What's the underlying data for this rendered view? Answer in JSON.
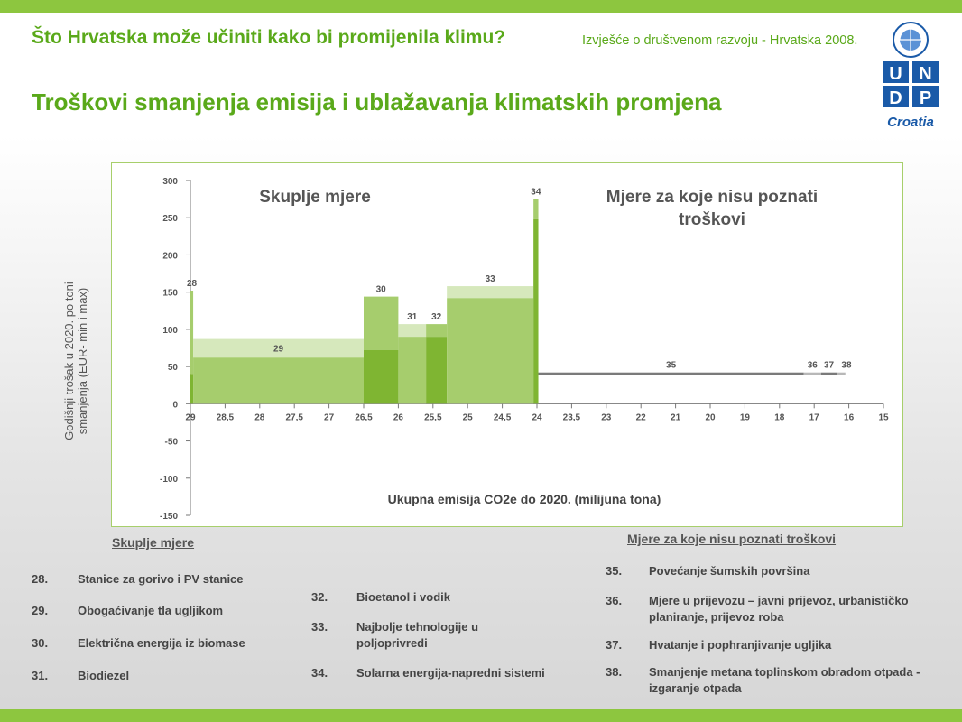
{
  "header": {
    "title": "Što Hrvatska može učiniti kako bi promijenila klimu?",
    "report": "Izvješće o društvenom razvoju - Hrvatska 2008.",
    "subtitle": "Troškovi smanjenja emisija i ublažavanja klimatskih promjena"
  },
  "logo": {
    "letters": [
      "U",
      "N",
      "D",
      "P"
    ],
    "country": "Croatia"
  },
  "colors": {
    "accent": "#8dc63f",
    "title_green": "#5aa91a",
    "bar_light": "#d6e8bc",
    "bar_mid": "#a6cd6d",
    "bar_dark": "#7fb532",
    "bar_gray": "#7a7a7a",
    "bar_gray_light": "#b8b8b8"
  },
  "chart_data": {
    "type": "bar",
    "annotations": [
      "Skuplje mjere",
      "Mjere za koje nisu poznati troškovi"
    ],
    "xlabel": "Ukupna emisija CO2e do 2020. (milijuna tona)",
    "ylabel": "Godišnji trošak u 2020. po toni smanjenja (EUR- min i max)",
    "xlim": [
      29,
      15
    ],
    "ylim": [
      -150,
      300
    ],
    "x_ticks": [
      "29",
      "28,5",
      "28",
      "27,5",
      "27",
      "26,5",
      "26",
      "25,5",
      "25",
      "24,5",
      "24",
      "23,5",
      "23",
      "22",
      "21",
      "20",
      "19",
      "18",
      "17",
      "16",
      "15"
    ],
    "y_ticks": [
      300,
      250,
      200,
      150,
      100,
      50,
      0,
      -50,
      -100,
      -150
    ],
    "bars": [
      {
        "label": "28",
        "x_start": 29.0,
        "x_end": 28.96,
        "min": 40,
        "max": 152,
        "dark": true
      },
      {
        "label": "29",
        "x_start": 28.96,
        "x_end": 26.5,
        "min": 62,
        "max": 87
      },
      {
        "label": "30",
        "x_start": 26.5,
        "x_end": 26.0,
        "min": 72,
        "max": 144,
        "dark": true
      },
      {
        "label": "31",
        "x_start": 26.0,
        "x_end": 25.6,
        "min": 90,
        "max": 107
      },
      {
        "label": "32",
        "x_start": 25.6,
        "x_end": 25.3,
        "min": 90,
        "max": 107,
        "dark": true
      },
      {
        "label": "33",
        "x_start": 25.3,
        "x_end": 24.05,
        "min": 142,
        "max": 158
      },
      {
        "label": "34",
        "x_start": 24.05,
        "x_end": 23.98,
        "min": 248,
        "max": 275,
        "dark": true
      },
      {
        "label": "35",
        "x_start": 23.98,
        "x_end": 17.3,
        "min": 40,
        "max": 42,
        "gray": true
      },
      {
        "label": "36",
        "x_start": 17.3,
        "x_end": 16.8,
        "min": 40,
        "max": 42,
        "gray_light": true
      },
      {
        "label": "37",
        "x_start": 16.8,
        "x_end": 16.35,
        "min": 40,
        "max": 42,
        "gray": true
      },
      {
        "label": "38",
        "x_start": 16.35,
        "x_end": 16.1,
        "min": 40,
        "max": 42,
        "gray_light": true
      }
    ]
  },
  "legend_left": {
    "heading": "Skuplje mjere",
    "items": [
      {
        "num": "28.",
        "text": "Stanice za gorivo i PV stanice"
      },
      {
        "num": "29.",
        "text": "Obogaćivanje tla ugljikom"
      },
      {
        "num": "30.",
        "text": "Električna energija iz biomase"
      },
      {
        "num": "31.",
        "text": "Biodiezel"
      }
    ]
  },
  "legend_mid": {
    "items": [
      {
        "num": "32.",
        "text": "Bioetanol i vodik"
      },
      {
        "num": "33.",
        "text": "Najbolje tehnologije u poljoprivredi"
      },
      {
        "num": "34.",
        "text": "Solarna energija-napredni sistemi"
      }
    ]
  },
  "legend_right": {
    "heading": "Mjere za koje nisu poznati troškovi",
    "items": [
      {
        "num": "35.",
        "text": "Povećanje šumskih površina"
      },
      {
        "num": "36.",
        "text": "Mjere u prijevozu – javni prijevoz, urbanističko planiranje, prijevoz roba"
      },
      {
        "num": "37.",
        "text": "Hvatanje i pophranjivanje ugljika"
      },
      {
        "num": "38.",
        "text": "Smanjenje metana toplinskom obradom otpada - izgaranje otpada"
      }
    ]
  }
}
